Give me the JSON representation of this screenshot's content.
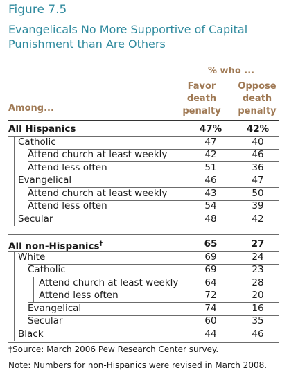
{
  "figure_label": "Figure 7.5",
  "chart_data": {
    "type": "table",
    "title": "Evangelicals No More Supportive of Capital Punishment than Are Others",
    "header_group": "% who ...",
    "row_header": "Among...",
    "columns": [
      "Favor death penalty",
      "Oppose death penalty"
    ],
    "rows": [
      {
        "label": "All Hispanics",
        "level": 0,
        "bold": true,
        "favor": "47%",
        "oppose": "42%"
      },
      {
        "label": "Catholic",
        "level": 1,
        "favor": "47",
        "oppose": "40"
      },
      {
        "label": "Attend church at least weekly",
        "level": 2,
        "favor": "42",
        "oppose": "46"
      },
      {
        "label": "Attend less often",
        "level": 2,
        "favor": "51",
        "oppose": "36"
      },
      {
        "label": "Evangelical",
        "level": 1,
        "favor": "46",
        "oppose": "47"
      },
      {
        "label": "Attend church at least weekly",
        "level": 2,
        "favor": "43",
        "oppose": "50"
      },
      {
        "label": "Attend less often",
        "level": 2,
        "favor": "54",
        "oppose": "39"
      },
      {
        "label": "Secular",
        "level": 1,
        "favor": "48",
        "oppose": "42"
      },
      {
        "label": "All non-Hispanics",
        "level": 0,
        "bold": true,
        "dagger": true,
        "favor": "65",
        "oppose": "27"
      },
      {
        "label": "White",
        "level": 1,
        "favor": "69",
        "oppose": "24"
      },
      {
        "label": "Catholic",
        "level": 2,
        "favor": "69",
        "oppose": "23"
      },
      {
        "label": "Attend church at least weekly",
        "level": 3,
        "favor": "64",
        "oppose": "28"
      },
      {
        "label": "Attend less often",
        "level": 3,
        "favor": "72",
        "oppose": "20"
      },
      {
        "label": "Evangelical",
        "level": 2,
        "favor": "74",
        "oppose": "16"
      },
      {
        "label": "Secular",
        "level": 2,
        "favor": "60",
        "oppose": "35"
      },
      {
        "label": "Black",
        "level": 1,
        "favor": "44",
        "oppose": "46"
      }
    ]
  },
  "footnotes": {
    "dagger": "†",
    "source": "Source: March 2006 Pew Research Center survey.",
    "note": "Note: Numbers for non-Hispanics were revised in March 2008."
  }
}
